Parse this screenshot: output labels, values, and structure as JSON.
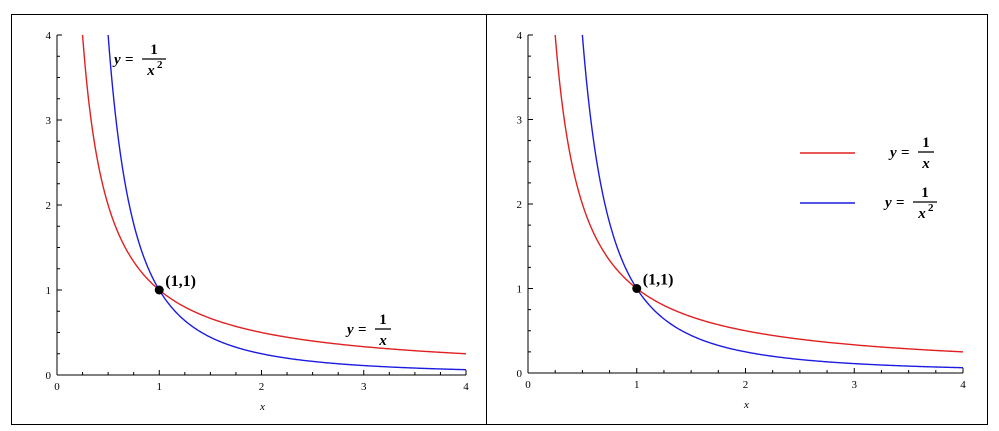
{
  "colors": {
    "series_1": "#e02020",
    "series_2": "#1c1ce0",
    "axis": "#000000",
    "frame": "#000000"
  },
  "chart_data": [
    {
      "type": "line",
      "xlabel": "x",
      "ylabel": "",
      "xlim": [
        0,
        4
      ],
      "ylim": [
        0,
        4
      ],
      "xticks": [
        "0",
        "1",
        "2",
        "3",
        "4"
      ],
      "yticks": [
        "0",
        "1",
        "2",
        "3",
        "4"
      ],
      "grid": false,
      "legend": "none",
      "series": [
        {
          "expr": "1/x",
          "color": "#e02020",
          "x": [
            0.25,
            0.3,
            0.4,
            0.5,
            0.75,
            1,
            1.5,
            2,
            2.5,
            3,
            3.5,
            4
          ],
          "y": [
            4,
            3.333,
            2.5,
            2,
            1.333,
            1,
            0.667,
            0.5,
            0.4,
            0.333,
            0.286,
            0.25
          ]
        },
        {
          "expr": "1/x^2",
          "color": "#1c1ce0",
          "x": [
            0.5,
            0.6,
            0.75,
            1,
            1.25,
            1.5,
            2,
            2.5,
            3,
            3.5,
            4
          ],
          "y": [
            4,
            2.778,
            1.778,
            1,
            0.64,
            0.444,
            0.25,
            0.16,
            0.111,
            0.082,
            0.0625
          ]
        }
      ],
      "annotations": [
        {
          "kind": "equation",
          "lhs": "y",
          "eq": "=",
          "num": "1",
          "den": "x",
          "exp": "2",
          "at": [
            0.9,
            3.55
          ]
        },
        {
          "kind": "equation",
          "lhs": "y",
          "eq": "=",
          "num": "1",
          "den": "x",
          "exp": "",
          "at": [
            3.3,
            0.45
          ]
        },
        {
          "kind": "point",
          "x": 1,
          "y": 1,
          "label": "(1,1)"
        }
      ]
    },
    {
      "type": "line",
      "xlabel": "x",
      "ylabel": "",
      "xlim": [
        0,
        4
      ],
      "ylim": [
        0,
        4
      ],
      "xticks": [
        "0",
        "1",
        "2",
        "3",
        "4"
      ],
      "yticks": [
        "0",
        "1",
        "2",
        "3",
        "4"
      ],
      "grid": false,
      "legend": "right",
      "series": [
        {
          "expr": "1/x",
          "color": "#e02020",
          "x": [
            0.25,
            0.3,
            0.4,
            0.5,
            0.75,
            1,
            1.5,
            2,
            2.5,
            3,
            3.5,
            4
          ],
          "y": [
            4,
            3.333,
            2.5,
            2,
            1.333,
            1,
            0.667,
            0.5,
            0.4,
            0.333,
            0.286,
            0.25
          ]
        },
        {
          "expr": "1/x^2",
          "color": "#1c1ce0",
          "x": [
            0.5,
            0.6,
            0.75,
            1,
            1.25,
            1.5,
            2,
            2.5,
            3,
            3.5,
            4
          ],
          "y": [
            4,
            2.778,
            1.778,
            1,
            0.64,
            0.444,
            0.25,
            0.16,
            0.111,
            0.082,
            0.0625
          ]
        }
      ],
      "legend_entries": [
        {
          "lhs": "y",
          "eq": "=",
          "num": "1",
          "den": "x",
          "exp": "",
          "color": "#e02020"
        },
        {
          "lhs": "y",
          "eq": "=",
          "num": "1",
          "den": "x",
          "exp": "2",
          "color": "#1c1ce0"
        }
      ],
      "annotations": [
        {
          "kind": "point",
          "x": 1,
          "y": 1,
          "label": "(1,1)"
        }
      ]
    }
  ]
}
